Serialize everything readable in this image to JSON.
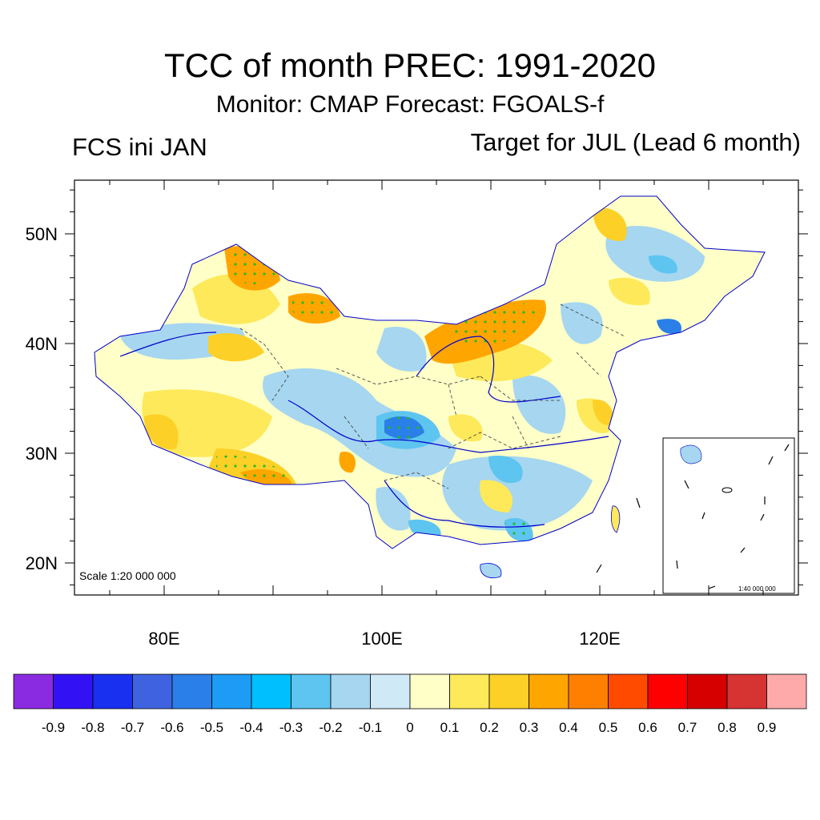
{
  "title": "TCC of month PREC: 1991-2020",
  "subtitle": "Monitor: CMAP   Forecast: FGOALS-f",
  "left_label": "FCS ini JAN",
  "right_label": "Target for JUL (Lead 6 month)",
  "scale_main": "Scale 1:20 000 000",
  "scale_inset": "1:40 000 000",
  "colors": {
    "pos_mid": "#fcd026",
    "pos_strong": "#ffa500",
    "neg_light": "#a6d6f0",
    "neg_mid": "#5ec4f0",
    "neg_strong": "#2b7fe8",
    "significance_dot": "#22bb22",
    "boundary": "#0000cc"
  },
  "chart_data": {
    "type": "map",
    "variable": "TCC (temporal correlation coefficient) of monthly precipitation",
    "period": "1991-2020",
    "lon_range": [
      72,
      138
    ],
    "lat_range": [
      17,
      55
    ],
    "x_ticks": [
      {
        "value": 80,
        "label": "80E"
      },
      {
        "value": 100,
        "label": "100E"
      },
      {
        "value": 120,
        "label": "120E"
      }
    ],
    "y_ticks": [
      {
        "value": 50,
        "label": "50N"
      },
      {
        "value": 40,
        "label": "40N"
      },
      {
        "value": 30,
        "label": "30N"
      },
      {
        "value": 20,
        "label": "20N"
      }
    ],
    "colorbar": {
      "labels": [
        "-0.9",
        "-0.8",
        "-0.7",
        "-0.6",
        "-0.5",
        "-0.4",
        "-0.3",
        "-0.2",
        "-0.1",
        "0",
        "0.1",
        "0.2",
        "0.3",
        "0.4",
        "0.5",
        "0.6",
        "0.7",
        "0.8",
        "0.9"
      ],
      "colors": [
        "#8a2be2",
        "#3212f5",
        "#1a30f0",
        "#3f63e0",
        "#2b7fe8",
        "#1e9bf5",
        "#00bfff",
        "#5ec4f0",
        "#a6d6f0",
        "#cfe9f7",
        "#ffffc8",
        "#fde95a",
        "#fcd026",
        "#ffa500",
        "#ff8000",
        "#ff4b00",
        "#ff0000",
        "#d60000",
        "#d63333",
        "#ffaaaa"
      ]
    }
  }
}
